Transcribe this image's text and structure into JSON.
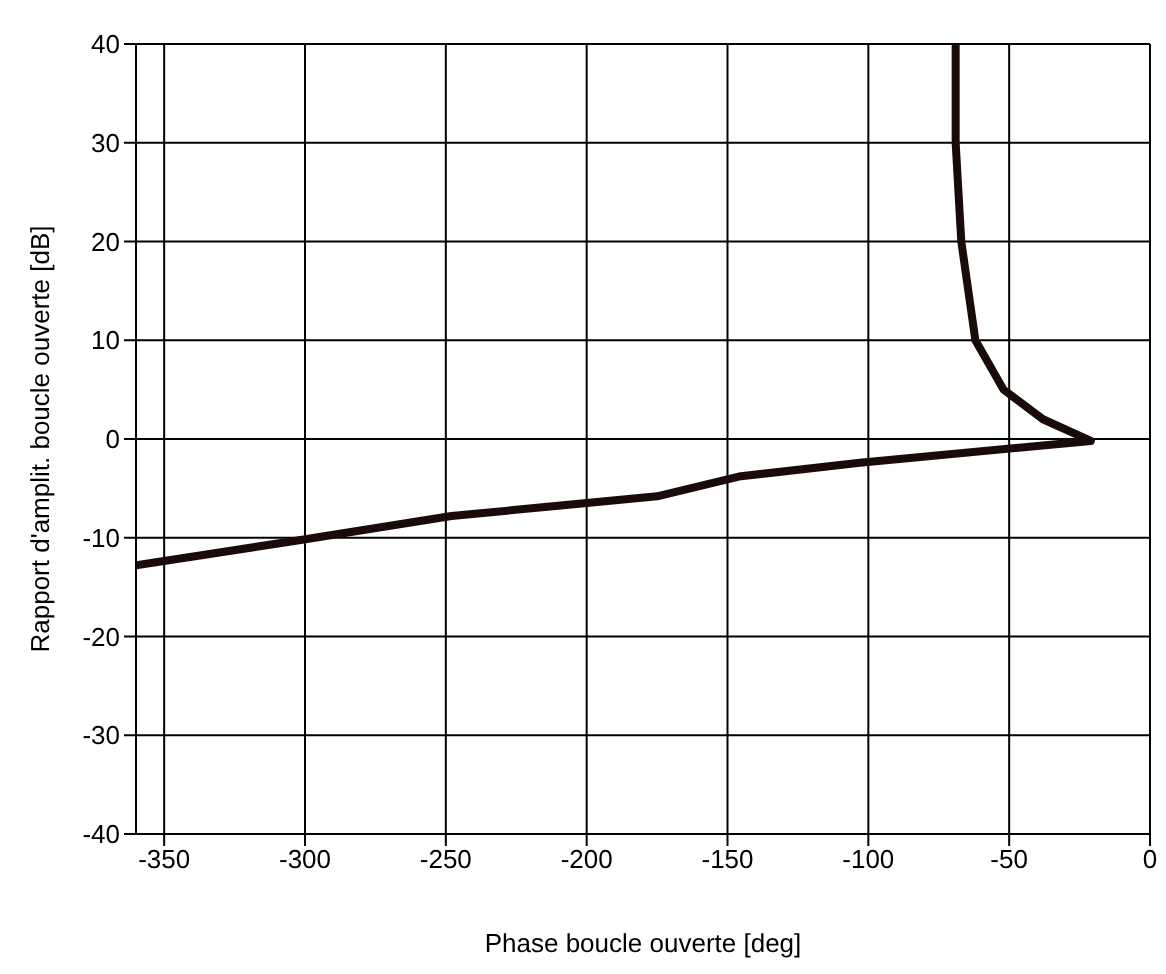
{
  "chart_data": {
    "type": "line",
    "xlabel": "Phase boucle ouverte [deg]",
    "ylabel": "Rapport d'amplit. boucle ouverte [dB]",
    "xlim": [
      -360,
      0
    ],
    "xticks": [
      -350,
      -300,
      -250,
      -200,
      -150,
      -100,
      -50,
      0
    ],
    "ylim": [
      -40,
      40
    ],
    "yticks": [
      -40,
      -30,
      -20,
      -10,
      0,
      10,
      20,
      30,
      40
    ],
    "grid": true,
    "marker": "none",
    "line_style": "solid",
    "series": [
      {
        "color": "#1a0a0a",
        "x": [
          -69,
          -69,
          -67,
          -62,
          -52,
          -38,
          -21,
          -103,
          -146,
          -175,
          -248,
          -301,
          -360
        ],
        "values": [
          40,
          30,
          20,
          10,
          5,
          2,
          -0.2,
          -2.4,
          -3.8,
          -5.8,
          -7.8,
          -10.2,
          -12.8
        ]
      }
    ]
  }
}
